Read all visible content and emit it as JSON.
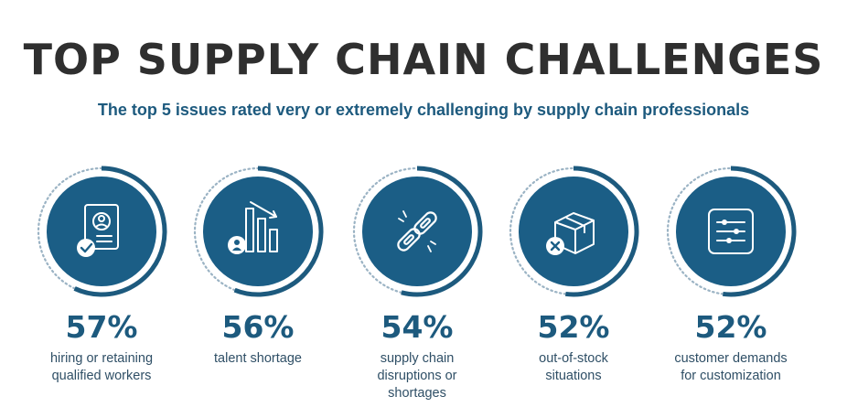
{
  "chart_data": {
    "type": "radial-progress",
    "title": "TOP SUPPLY CHAIN CHALLENGES",
    "subtitle": "The top 5 issues rated very or extremely challenging by supply chain professionals",
    "unit": "%",
    "ylim": [
      0,
      100
    ],
    "items": [
      {
        "value": 57,
        "display": "57%",
        "label_lines": [
          "hiring or retaining",
          "qualified workers"
        ],
        "icon": "resume-check-icon"
      },
      {
        "value": 56,
        "display": "56%",
        "label_lines": [
          "talent shortage"
        ],
        "icon": "declining-bar-chart-icon"
      },
      {
        "value": 54,
        "display": "54%",
        "label_lines": [
          "supply chain",
          "disruptions or",
          "shortages"
        ],
        "icon": "broken-chain-icon"
      },
      {
        "value": 52,
        "display": "52%",
        "label_lines": [
          "out-of-stock",
          "situations"
        ],
        "icon": "box-x-icon"
      },
      {
        "value": 52,
        "display": "52%",
        "label_lines": [
          "customer demands",
          "for customization"
        ],
        "icon": "sliders-icon"
      }
    ]
  },
  "colors": {
    "title": "#2f2f2f",
    "accent": "#1d5a7e",
    "circle_fill": "#1b5e86",
    "dotted_ring": "#9bb3c4",
    "icon_stroke": "#ffffff"
  }
}
